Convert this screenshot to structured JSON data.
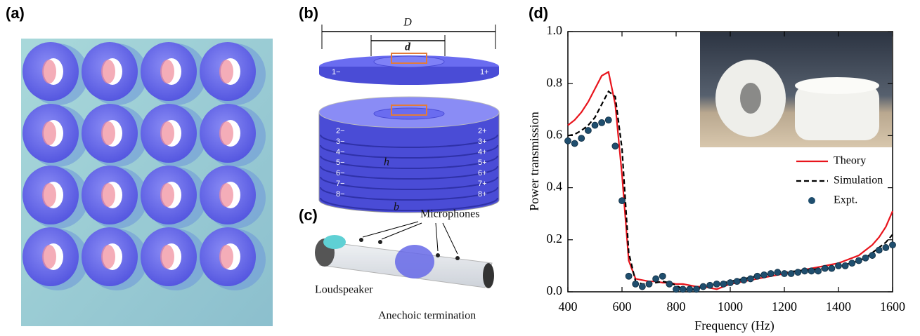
{
  "panels": {
    "a": {
      "label": "(a)"
    },
    "b": {
      "label": "(b)",
      "D": "D",
      "d": "d",
      "h": "h",
      "b": "b",
      "top_left": "1−",
      "top_right": "1+",
      "left": [
        "2−",
        "3−",
        "4−",
        "5−",
        "6−",
        "7−",
        "8−"
      ],
      "right": [
        "2+",
        "3+",
        "4+",
        "5+",
        "6+",
        "7+",
        "8+"
      ]
    },
    "c": {
      "label": "(c)",
      "microphones": "Microphones",
      "loudspeaker": "Loudspeaker",
      "termination": "Anechoic termination"
    },
    "d": {
      "label": "(d)"
    }
  },
  "chart_data": {
    "type": "line",
    "xlabel": "Frequency (Hz)",
    "ylabel": "Power transmission",
    "xlim": [
      400,
      1600
    ],
    "ylim": [
      0,
      1.0
    ],
    "xticks": [
      400,
      600,
      800,
      1000,
      1200,
      1400,
      1600
    ],
    "yticks": [
      {
        "value": 0,
        "label": "0.0"
      },
      0.2,
      0.4,
      0.6,
      0.8,
      {
        "value": 1.0,
        "label": "1.0"
      }
    ],
    "x": [
      400,
      425,
      450,
      475,
      500,
      525,
      550,
      575,
      600,
      625,
      650,
      675,
      700,
      725,
      750,
      775,
      800,
      825,
      850,
      875,
      900,
      925,
      950,
      975,
      1000,
      1025,
      1050,
      1075,
      1100,
      1125,
      1150,
      1175,
      1200,
      1225,
      1250,
      1275,
      1300,
      1325,
      1350,
      1375,
      1400,
      1425,
      1450,
      1475,
      1500,
      1525,
      1550,
      1575,
      1600
    ],
    "series": [
      {
        "name": "Theory",
        "color": "#e8141c",
        "style": "solid",
        "values": [
          0.64,
          0.66,
          0.69,
          0.73,
          0.78,
          0.83,
          0.845,
          0.72,
          0.45,
          0.12,
          0.05,
          0.045,
          0.04,
          0.04,
          0.035,
          0.035,
          0.03,
          0.03,
          0.025,
          0.02,
          0.02,
          0.015,
          0.01,
          0.02,
          0.03,
          0.035,
          0.04,
          0.045,
          0.05,
          0.055,
          0.06,
          0.065,
          0.07,
          0.075,
          0.08,
          0.085,
          0.09,
          0.095,
          0.1,
          0.105,
          0.11,
          0.12,
          0.13,
          0.14,
          0.16,
          0.18,
          0.21,
          0.25,
          0.31
        ]
      },
      {
        "name": "Simulation",
        "color": "#000000",
        "style": "dashed",
        "values": [
          0.6,
          0.605,
          0.62,
          0.64,
          0.67,
          0.72,
          0.77,
          0.75,
          0.55,
          0.15,
          0.04,
          0.03,
          0.03,
          0.035,
          0.04,
          0.035,
          0.025,
          0.01,
          0.005,
          0.01,
          0.02,
          0.025,
          0.03,
          0.035,
          0.04,
          0.045,
          0.05,
          0.055,
          0.06,
          0.065,
          0.07,
          0.072,
          0.075,
          0.078,
          0.08,
          0.083,
          0.085,
          0.088,
          0.09,
          0.095,
          0.1,
          0.105,
          0.11,
          0.12,
          0.13,
          0.15,
          0.17,
          0.19,
          0.22
        ]
      },
      {
        "name": "Expt.",
        "color": "#1f4e6e",
        "style": "dots",
        "values": [
          0.58,
          0.57,
          0.59,
          0.62,
          0.64,
          0.65,
          0.66,
          0.56,
          0.35,
          0.06,
          0.03,
          0.02,
          0.03,
          0.05,
          0.06,
          0.03,
          0.01,
          0.01,
          0.01,
          0.01,
          0.02,
          0.025,
          0.03,
          0.03,
          0.035,
          0.04,
          0.045,
          0.05,
          0.06,
          0.065,
          0.07,
          0.075,
          0.07,
          0.07,
          0.075,
          0.08,
          0.08,
          0.08,
          0.09,
          0.09,
          0.1,
          0.1,
          0.11,
          0.12,
          0.13,
          0.14,
          0.16,
          0.17,
          0.18
        ]
      }
    ]
  }
}
